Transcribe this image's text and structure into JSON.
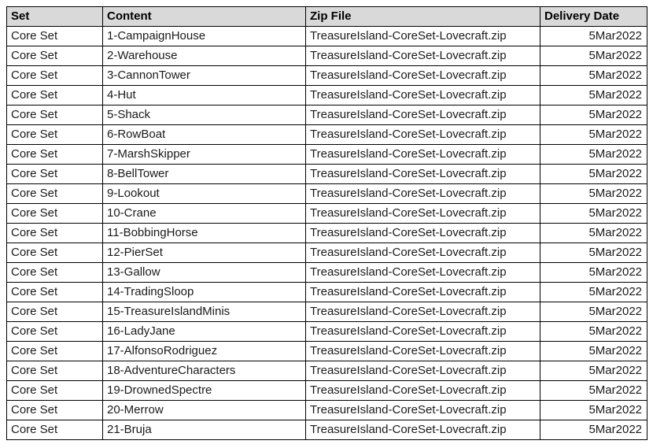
{
  "colors": {
    "header_bg": "#d9d9d9",
    "border": "#000000"
  },
  "table": {
    "columns": [
      {
        "label": "Set"
      },
      {
        "label": "Content"
      },
      {
        "label": "Zip File"
      },
      {
        "label": "Delivery Date"
      }
    ],
    "rows": [
      {
        "set": "Core Set",
        "content": "1-CampaignHouse",
        "zip": "TreasureIsland-CoreSet-Lovecraft.zip",
        "date": "5Mar2022"
      },
      {
        "set": "Core Set",
        "content": "2-Warehouse",
        "zip": "TreasureIsland-CoreSet-Lovecraft.zip",
        "date": "5Mar2022"
      },
      {
        "set": "Core Set",
        "content": "3-CannonTower",
        "zip": "TreasureIsland-CoreSet-Lovecraft.zip",
        "date": "5Mar2022"
      },
      {
        "set": "Core Set",
        "content": "4-Hut",
        "zip": "TreasureIsland-CoreSet-Lovecraft.zip",
        "date": "5Mar2022"
      },
      {
        "set": "Core Set",
        "content": "5-Shack",
        "zip": "TreasureIsland-CoreSet-Lovecraft.zip",
        "date": "5Mar2022"
      },
      {
        "set": "Core Set",
        "content": "6-RowBoat",
        "zip": "TreasureIsland-CoreSet-Lovecraft.zip",
        "date": "5Mar2022"
      },
      {
        "set": "Core Set",
        "content": "7-MarshSkipper",
        "zip": "TreasureIsland-CoreSet-Lovecraft.zip",
        "date": "5Mar2022"
      },
      {
        "set": "Core Set",
        "content": "8-BellTower",
        "zip": "TreasureIsland-CoreSet-Lovecraft.zip",
        "date": "5Mar2022"
      },
      {
        "set": "Core Set",
        "content": "9-Lookout",
        "zip": "TreasureIsland-CoreSet-Lovecraft.zip",
        "date": "5Mar2022"
      },
      {
        "set": "Core Set",
        "content": "10-Crane",
        "zip": "TreasureIsland-CoreSet-Lovecraft.zip",
        "date": "5Mar2022"
      },
      {
        "set": "Core Set",
        "content": "11-BobbingHorse",
        "zip": "TreasureIsland-CoreSet-Lovecraft.zip",
        "date": "5Mar2022"
      },
      {
        "set": "Core Set",
        "content": "12-PierSet",
        "zip": "TreasureIsland-CoreSet-Lovecraft.zip",
        "date": "5Mar2022"
      },
      {
        "set": "Core Set",
        "content": "13-Gallow",
        "zip": "TreasureIsland-CoreSet-Lovecraft.zip",
        "date": "5Mar2022"
      },
      {
        "set": "Core Set",
        "content": "14-TradingSloop",
        "zip": "TreasureIsland-CoreSet-Lovecraft.zip",
        "date": "5Mar2022"
      },
      {
        "set": "Core Set",
        "content": "15-TreasureIslandMinis",
        "zip": "TreasureIsland-CoreSet-Lovecraft.zip",
        "date": "5Mar2022"
      },
      {
        "set": "Core Set",
        "content": "16-LadyJane",
        "zip": "TreasureIsland-CoreSet-Lovecraft.zip",
        "date": "5Mar2022"
      },
      {
        "set": "Core Set",
        "content": "17-AlfonsoRodriguez",
        "zip": "TreasureIsland-CoreSet-Lovecraft.zip",
        "date": "5Mar2022"
      },
      {
        "set": "Core Set",
        "content": "18-AdventureCharacters",
        "zip": "TreasureIsland-CoreSet-Lovecraft.zip",
        "date": "5Mar2022"
      },
      {
        "set": "Core Set",
        "content": "19-DrownedSpectre",
        "zip": "TreasureIsland-CoreSet-Lovecraft.zip",
        "date": "5Mar2022"
      },
      {
        "set": "Core Set",
        "content": "20-Merrow",
        "zip": "TreasureIsland-CoreSet-Lovecraft.zip",
        "date": "5Mar2022"
      },
      {
        "set": "Core Set",
        "content": "21-Bruja",
        "zip": "TreasureIsland-CoreSet-Lovecraft.zip",
        "date": "5Mar2022"
      }
    ]
  }
}
